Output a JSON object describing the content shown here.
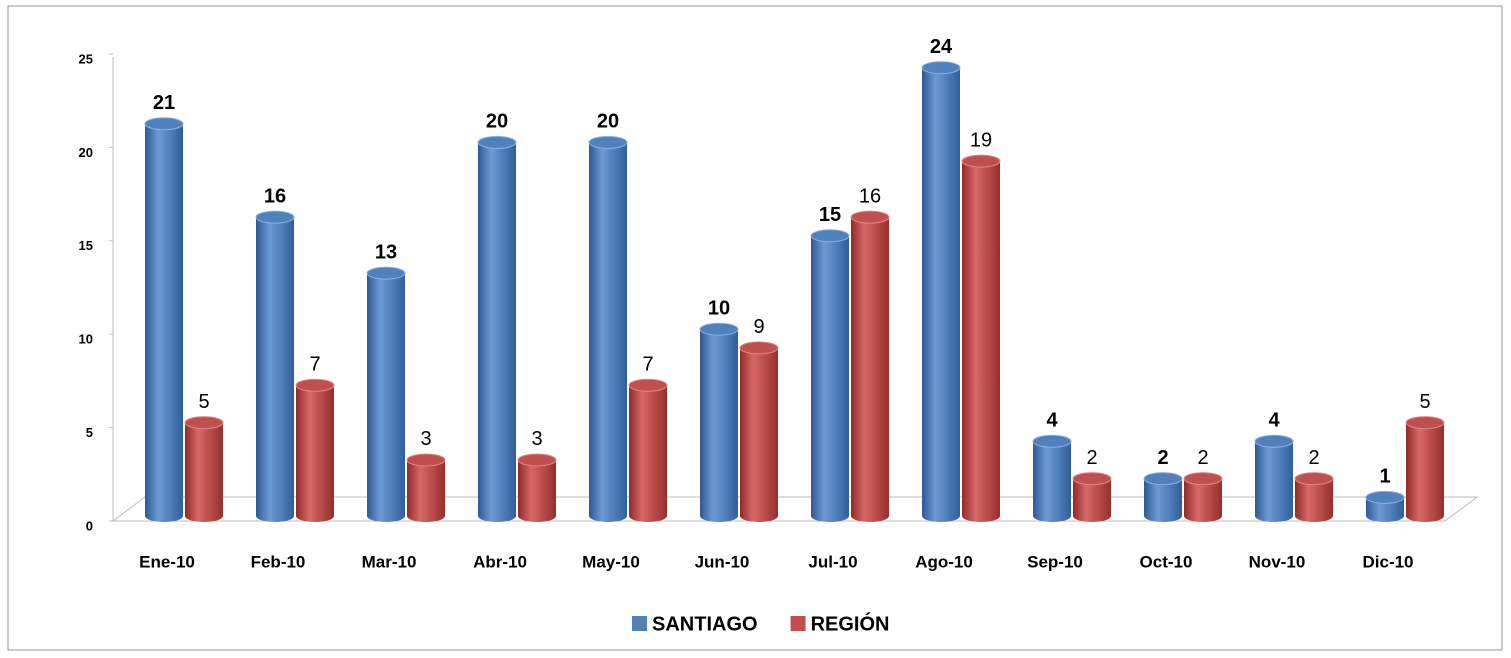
{
  "chart_data": {
    "type": "bar",
    "style": "3d-cylinder",
    "categories": [
      "Ene-10",
      "Feb-10",
      "Mar-10",
      "Abr-10",
      "May-10",
      "Jun-10",
      "Jul-10",
      "Ago-10",
      "Sep-10",
      "Oct-10",
      "Nov-10",
      "Dic-10"
    ],
    "series": [
      {
        "name": "SANTIAGO",
        "color": "#4f81bd",
        "values": [
          21,
          16,
          13,
          20,
          20,
          10,
          15,
          24,
          4,
          2,
          4,
          1
        ]
      },
      {
        "name": "REGIÓN",
        "color": "#c0504d",
        "values": [
          5,
          7,
          3,
          3,
          7,
          9,
          16,
          19,
          2,
          2,
          2,
          5
        ]
      }
    ],
    "ylim": [
      0,
      25
    ],
    "yticks": [
      0,
      5,
      10,
      15,
      20,
      25
    ],
    "grid": false,
    "legend": "bottom"
  }
}
